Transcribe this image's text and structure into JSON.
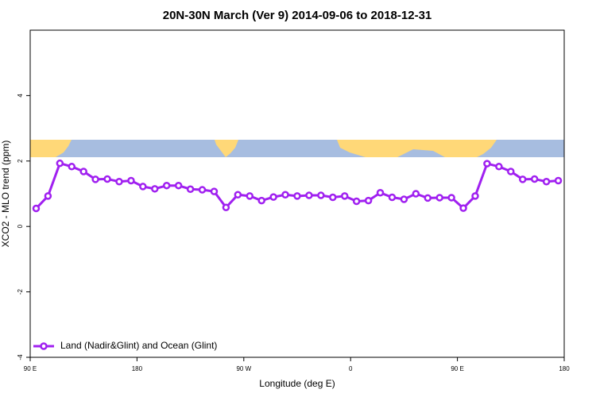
{
  "chart_data": {
    "type": "line",
    "title": "20N-30N March (Ver 9)   2014-09-06 to 2018-12-31",
    "x_label": "Longitude (deg E)",
    "y_label": "XCO2 - MLO trend (ppm)",
    "x": [
      95,
      105,
      115,
      125,
      135,
      145,
      155,
      165,
      175,
      185,
      195,
      205,
      215,
      225,
      235,
      245,
      255,
      265,
      275,
      285,
      295,
      305,
      315,
      325,
      335,
      345,
      355,
      365,
      375,
      385,
      395,
      405,
      415,
      425,
      435,
      445,
      455,
      465,
      475,
      485,
      495,
      505,
      515,
      525,
      535
    ],
    "series": [
      {
        "name": "Land (Nadir&Glint) and Ocean (Glint)",
        "color": "#a020f0",
        "values": [
          0.55,
          0.93,
          1.93,
          1.83,
          1.68,
          1.44,
          1.45,
          1.37,
          1.4,
          1.22,
          1.15,
          1.25,
          1.25,
          1.14,
          1.12,
          1.07,
          0.58,
          0.97,
          0.93,
          0.79,
          0.9,
          0.97,
          0.93,
          0.95,
          0.95,
          0.89,
          0.93,
          0.77,
          0.79,
          1.03,
          0.89,
          0.83,
          1.0,
          0.87,
          0.88,
          0.88,
          0.56,
          0.93,
          1.92,
          1.83,
          1.68,
          1.44,
          1.45,
          1.37,
          1.4
        ]
      }
    ],
    "xlim": [
      90,
      540
    ],
    "xticks": [
      {
        "value": 90,
        "label": "90 E"
      },
      180,
      {
        "value": 270,
        "label": "90 W"
      },
      {
        "value": 360,
        "label": "0"
      },
      {
        "value": 450,
        "label": "90 E"
      },
      {
        "value": 540,
        "label": "180"
      }
    ],
    "ylim": [
      -4,
      6
    ],
    "yticks": [
      -4,
      -2,
      0,
      2,
      4
    ],
    "legend": "bottom-left"
  }
}
